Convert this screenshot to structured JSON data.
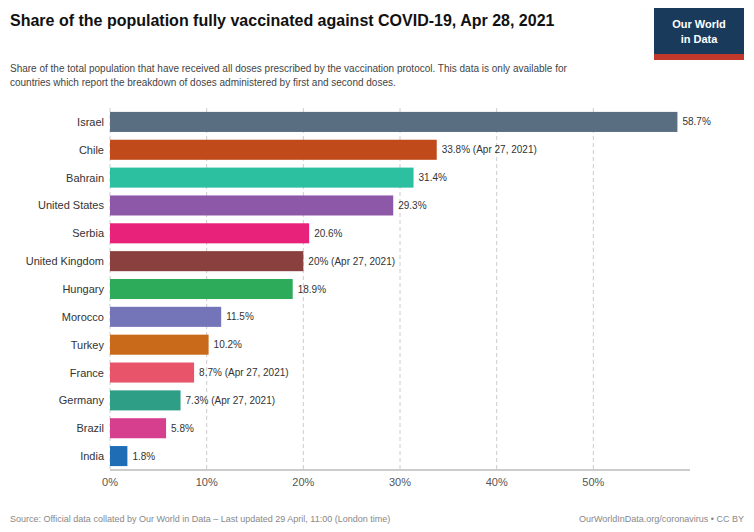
{
  "chart_data": {
    "type": "bar",
    "orientation": "horizontal",
    "title": "Share of the population fully vaccinated against COVID-19, Apr 28, 2021",
    "subtitle": "Share of the total population that have received all doses prescribed by the vaccination protocol. This data is only available for\ncountries which report the breakdown of doses administered by first and second doses.",
    "categories": [
      "India",
      "Brazil",
      "Germany",
      "France",
      "Turkey",
      "Morocco",
      "Hungary",
      "United Kingdom",
      "Serbia",
      "United States",
      "Bahrain",
      "Chile",
      "Israel"
    ],
    "values": [
      1.8,
      5.8,
      7.3,
      8.7,
      10.2,
      11.5,
      18.9,
      20.0,
      20.6,
      29.3,
      31.4,
      33.8,
      58.7
    ],
    "value_labels": [
      "1.8%",
      "5.8%",
      "7.3% (Apr 27, 2021)",
      "8.7% (Apr 27, 2021)",
      "10.2%",
      "11.5%",
      "18.9%",
      "20% (Apr 27, 2021)",
      "20.6%",
      "29.3%",
      "31.4%",
      "33.8% (Apr 27, 2021)",
      "58.7%"
    ],
    "colors": [
      "#1f6eb5",
      "#d63e8e",
      "#2e9e87",
      "#e8546a",
      "#c96a1a",
      "#7474b8",
      "#2daa5a",
      "#8b4040",
      "#e8227a",
      "#8e58a8",
      "#2dc0a0",
      "#c04a1a",
      "#5a6e82"
    ],
    "xlim": [
      0,
      60
    ],
    "xticks": [
      {
        "value": 0,
        "label": "0%"
      },
      {
        "value": 10,
        "label": "10%"
      },
      {
        "value": 20,
        "label": "20%"
      },
      {
        "value": 30,
        "label": "30%"
      },
      {
        "value": 40,
        "label": "40%"
      },
      {
        "value": 50,
        "label": "50%"
      }
    ],
    "grid": true,
    "data_labels": true,
    "annotations": [
      "Source: Official data collated by Our World in Data – Last updated 29 April, 11:00 (London time)",
      "OurWorldInData.org/coronavirus • CC BY",
      "Our World",
      "in Data"
    ]
  }
}
